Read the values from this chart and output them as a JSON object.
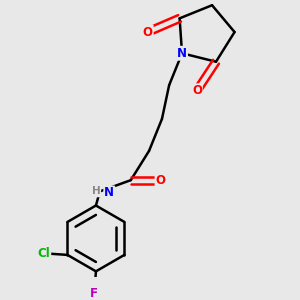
{
  "background_color": "#e8e8e8",
  "bond_color": "#000000",
  "atom_colors": {
    "N": "#0000ff",
    "O": "#ff0000",
    "Cl": "#00bb00",
    "F": "#bb00bb",
    "H": "#888888"
  },
  "figsize": [
    3.0,
    3.0
  ],
  "dpi": 100,
  "xlim": [
    -0.5,
    2.8
  ],
  "ylim": [
    -0.3,
    3.2
  ]
}
